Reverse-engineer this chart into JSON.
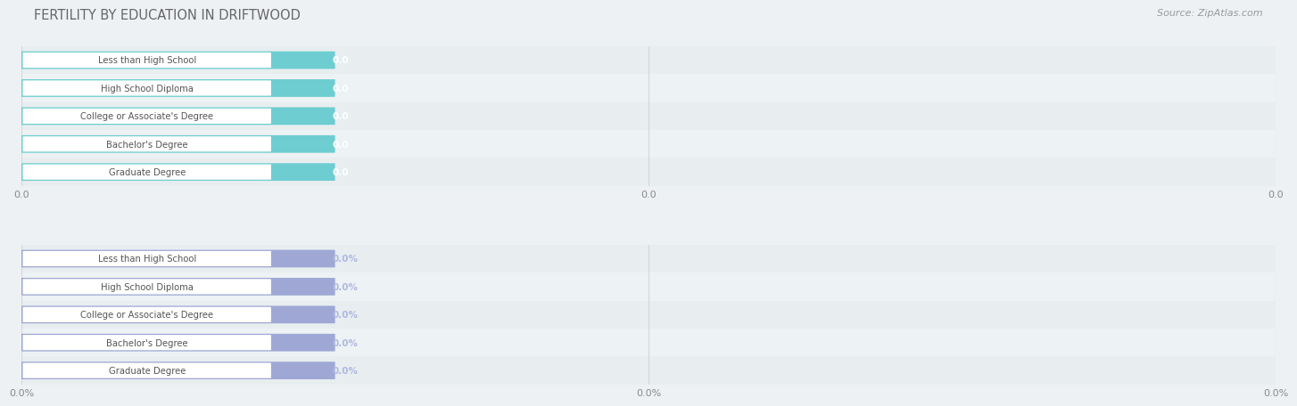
{
  "title": "FERTILITY BY EDUCATION IN DRIFTWOOD",
  "source": "Source: ZipAtlas.com",
  "categories": [
    "Less than High School",
    "High School Diploma",
    "College or Associate's Degree",
    "Bachelor's Degree",
    "Graduate Degree"
  ],
  "top_values": [
    0.0,
    0.0,
    0.0,
    0.0,
    0.0
  ],
  "bottom_values": [
    0.0,
    0.0,
    0.0,
    0.0,
    0.0
  ],
  "top_bar_color": "#6ecdd0",
  "bottom_bar_color": "#9fa8d5",
  "title_color": "#666666",
  "source_color": "#999999",
  "label_text_color": "#555555",
  "top_value_text_color": "#ffffff",
  "bottom_value_text_color": "#b0b8e0",
  "xtick_top": [
    "0.0",
    "0.0",
    "0.0"
  ],
  "xtick_bottom": [
    "0.0%",
    "0.0%",
    "0.0%"
  ],
  "row_even_color": "#e8eef0",
  "row_odd_color": "#edf2f4",
  "fig_bg": "#eef1f4",
  "bar_height": 0.62,
  "label_box_color": "#ffffff",
  "grid_color": "#d0d8dc"
}
